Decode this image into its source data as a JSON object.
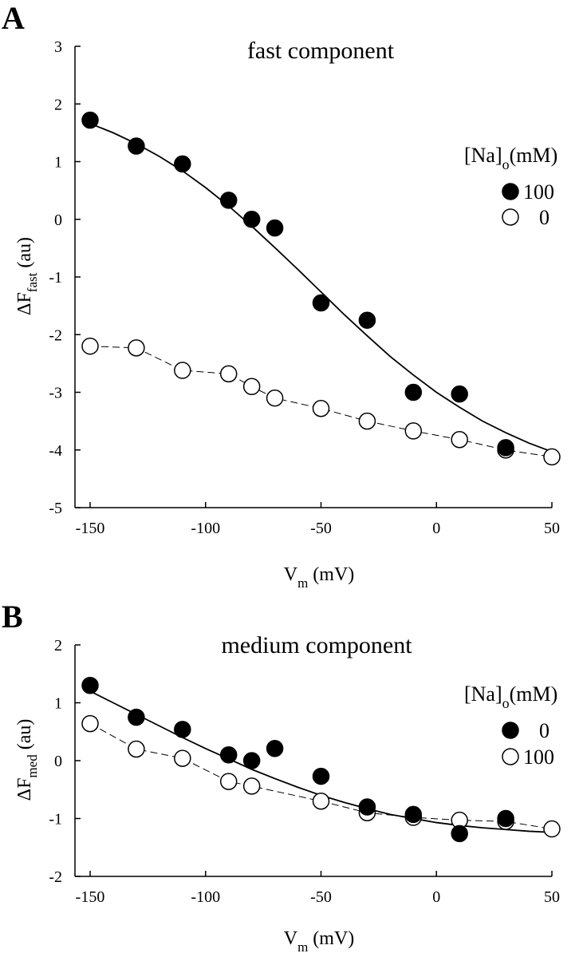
{
  "chart_data": [
    {
      "panel_label": "A",
      "type": "scatter",
      "title": "fast component",
      "xlabel": {
        "main": "V",
        "sub": "m",
        "rest": " (mV)"
      },
      "ylabel": {
        "main": "ΔF",
        "sub": "fast",
        "rest": " (au)"
      },
      "xlim": [
        -150,
        50
      ],
      "ylim": [
        -5,
        3
      ],
      "xticks": [
        -150,
        -100,
        -50,
        0,
        50
      ],
      "yticks": [
        -5,
        -4,
        -3,
        -2,
        -1,
        0,
        1,
        2,
        3
      ],
      "legend": {
        "title": {
          "pre": "[Na]",
          "sub": "o",
          "post": "(mM)"
        },
        "placement": "right",
        "entries": [
          {
            "label": "100",
            "marker": "filled"
          },
          {
            "label": "0",
            "marker": "open"
          }
        ]
      },
      "series": [
        {
          "name": "100",
          "marker": "filled",
          "x": [
            -150,
            -130,
            -110,
            -90,
            -80,
            -70,
            -50,
            -30,
            -10,
            10,
            30
          ],
          "y": [
            1.72,
            1.27,
            0.96,
            0.33,
            0.0,
            -0.15,
            -1.45,
            -1.75,
            -3.0,
            -3.03,
            -3.96
          ]
        },
        {
          "name": "0",
          "marker": "open",
          "line": "dashed",
          "x": [
            -150,
            -130,
            -110,
            -90,
            -80,
            -70,
            -50,
            -30,
            -10,
            10,
            30,
            50
          ],
          "y": [
            -2.2,
            -2.23,
            -2.62,
            -2.68,
            -2.9,
            -3.1,
            -3.28,
            -3.5,
            -3.67,
            -3.82,
            -4.0,
            -4.12
          ]
        }
      ],
      "fit": {
        "series": "100",
        "style": "solid",
        "x": [
          -150,
          -140,
          -130,
          -120,
          -110,
          -100,
          -90,
          -80,
          -70,
          -60,
          -50,
          -40,
          -30,
          -20,
          -10,
          0,
          10,
          20,
          30,
          40,
          50
        ],
        "y": [
          1.66,
          1.5,
          1.31,
          1.09,
          0.84,
          0.55,
          0.23,
          -0.12,
          -0.49,
          -0.87,
          -1.26,
          -1.65,
          -2.02,
          -2.38,
          -2.7,
          -3.0,
          -3.26,
          -3.5,
          -3.7,
          -3.88,
          -4.03
        ]
      }
    },
    {
      "panel_label": "B",
      "type": "scatter",
      "title": "medium component",
      "xlabel": {
        "main": "V",
        "sub": "m",
        "rest": " (mV)"
      },
      "ylabel": {
        "main": "ΔF",
        "sub": "med",
        "rest": " (au)"
      },
      "xlim": [
        -150,
        50
      ],
      "ylim": [
        -2,
        2
      ],
      "xticks": [
        -150,
        -100,
        -50,
        0,
        50
      ],
      "yticks": [
        -2,
        -1,
        0,
        1,
        2
      ],
      "legend": {
        "title": {
          "pre": "[Na]",
          "sub": "o",
          "post": "(mM)"
        },
        "placement": "right",
        "entries": [
          {
            "label": "0",
            "marker": "filled"
          },
          {
            "label": "100",
            "marker": "open"
          }
        ]
      },
      "series": [
        {
          "name": "0",
          "marker": "filled",
          "x": [
            -150,
            -130,
            -110,
            -90,
            -80,
            -70,
            -50,
            -30,
            -10,
            10,
            30
          ],
          "y": [
            1.3,
            0.75,
            0.54,
            0.1,
            0.0,
            0.21,
            -0.27,
            -0.8,
            -0.93,
            -1.26,
            -1.0
          ]
        },
        {
          "name": "100",
          "marker": "open",
          "line": "dashed",
          "x": [
            -150,
            -130,
            -110,
            -90,
            -80,
            -50,
            -30,
            -10,
            10,
            30,
            50
          ],
          "y": [
            0.64,
            0.2,
            0.04,
            -0.36,
            -0.44,
            -0.7,
            -0.9,
            -0.98,
            -1.03,
            -1.05,
            -1.18
          ]
        }
      ],
      "fit": {
        "series": "0",
        "style": "solid",
        "x": [
          -150,
          -140,
          -130,
          -120,
          -110,
          -100,
          -90,
          -80,
          -70,
          -60,
          -50,
          -40,
          -30,
          -20,
          -10,
          0,
          10,
          20,
          30,
          40,
          50
        ],
        "y": [
          1.2,
          1.0,
          0.8,
          0.6,
          0.4,
          0.21,
          0.03,
          -0.15,
          -0.31,
          -0.46,
          -0.6,
          -0.72,
          -0.83,
          -0.93,
          -1.0,
          -1.07,
          -1.12,
          -1.16,
          -1.19,
          -1.22,
          -1.24
        ]
      }
    }
  ]
}
